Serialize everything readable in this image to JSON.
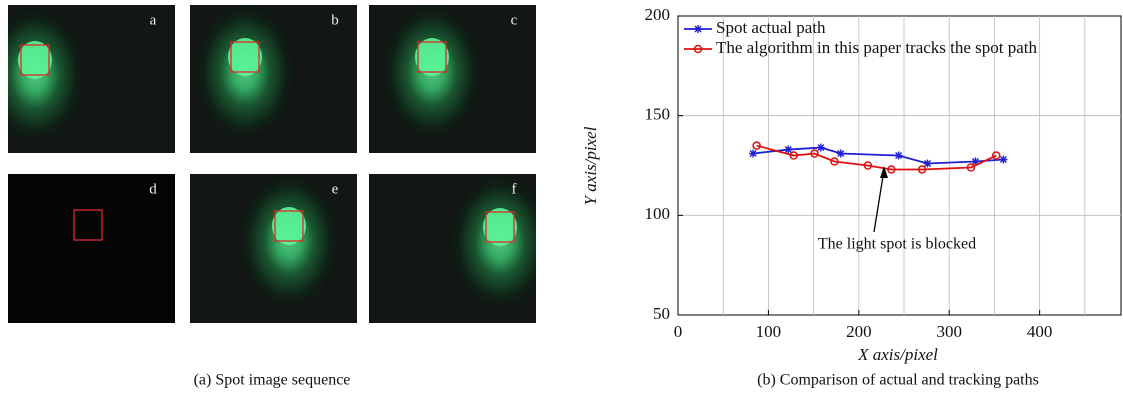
{
  "panels": {
    "labels": [
      "a",
      "b",
      "c",
      "d",
      "e",
      "f"
    ],
    "caption": "(a) Spot image sequence"
  },
  "chart_data": {
    "type": "line",
    "caption": "(b) Comparison of actual and tracking paths",
    "x_label": "X axis/pixel",
    "y_label": "Y axis/pixel",
    "annotation": "The light spot is blocked",
    "xlim": [
      0,
      490
    ],
    "ylim": [
      50,
      200
    ],
    "xticks": [
      0,
      100,
      200,
      300,
      400
    ],
    "yticks": [
      50,
      100,
      150,
      200
    ],
    "xgrid": [
      50,
      100,
      150,
      200,
      250,
      300,
      350,
      400,
      450
    ],
    "ygrid": [
      100,
      150
    ],
    "legend": "upper left",
    "series": [
      {
        "name": "Spot actual path",
        "color": "#1f1fd6",
        "marker": "star",
        "x": [
          83,
          122,
          158,
          180,
          244,
          276,
          329,
          360
        ],
        "values": [
          131,
          133,
          134,
          131,
          130,
          126,
          127,
          128
        ]
      },
      {
        "name": "The algorithm in this paper tracks the spot path",
        "color": "#e01010",
        "marker": "circle",
        "x": [
          87,
          128,
          151,
          173,
          210,
          236,
          270,
          324,
          352
        ],
        "values": [
          135,
          130,
          131,
          127,
          125,
          123,
          123,
          124,
          130
        ]
      }
    ]
  }
}
